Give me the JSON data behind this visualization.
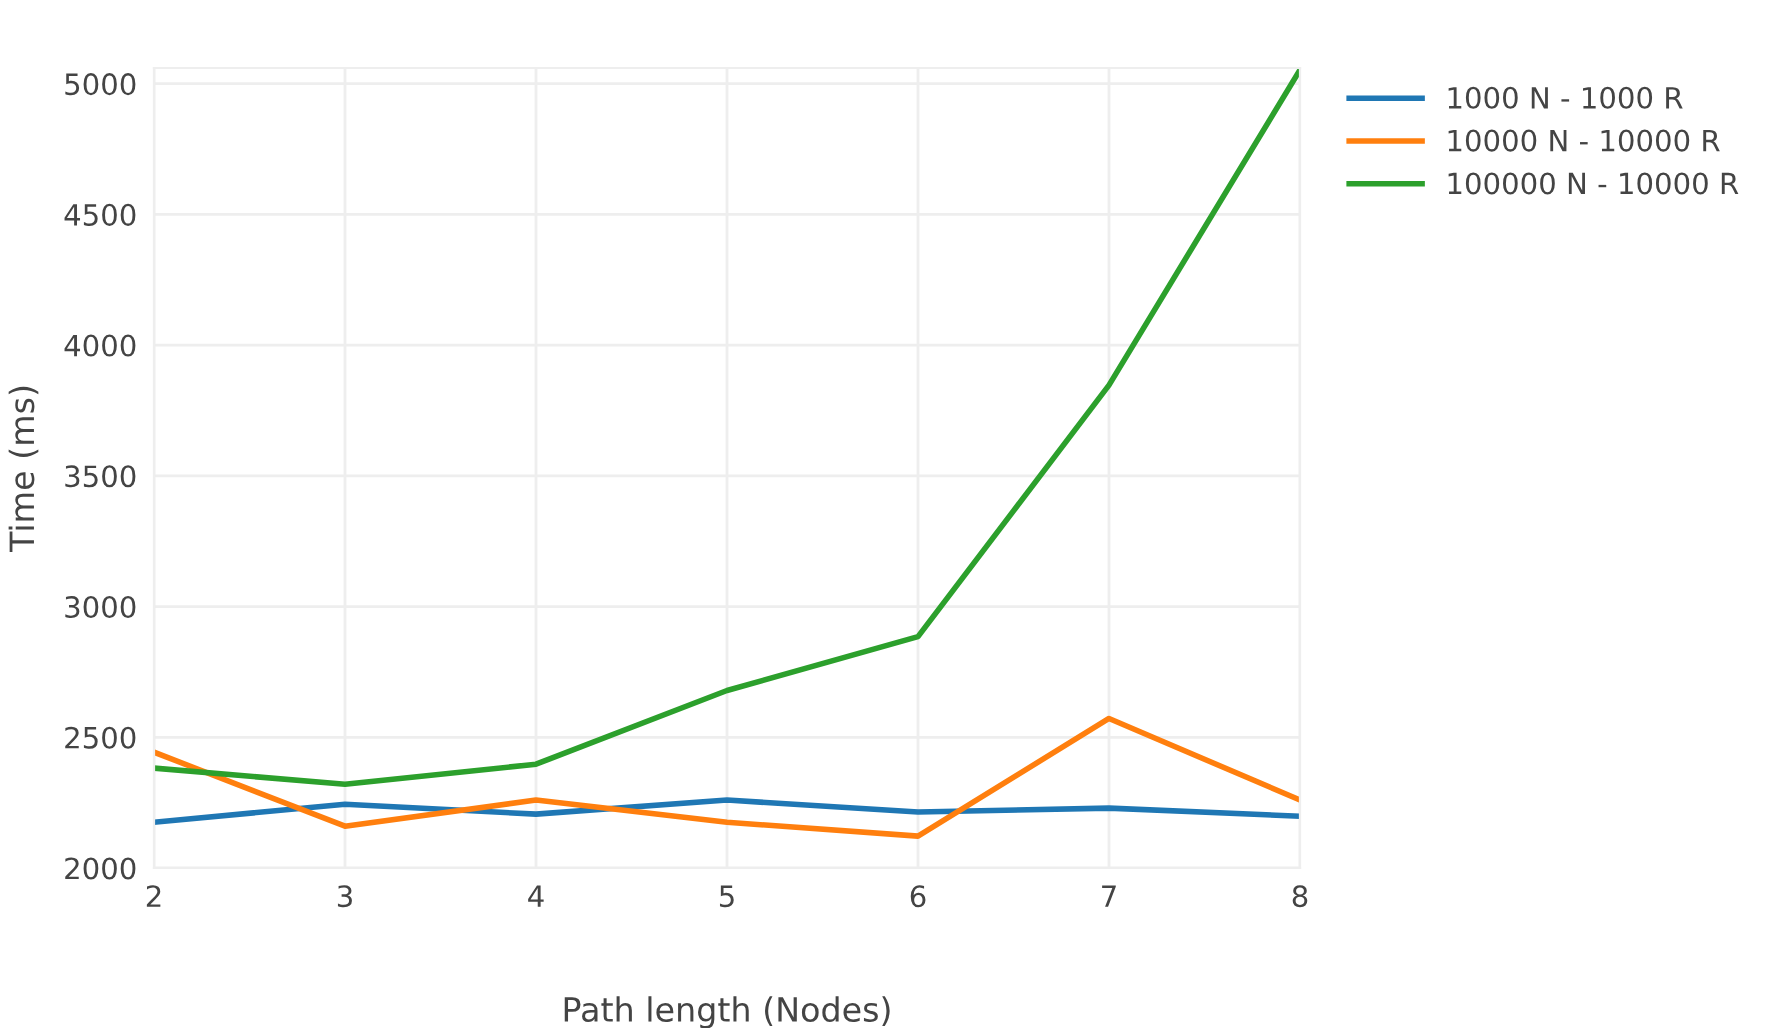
{
  "chart_data": {
    "type": "line",
    "xlabel": "Path length (Nodes)",
    "ylabel": "Time (ms)",
    "x": [
      2,
      3,
      4,
      5,
      6,
      7,
      8
    ],
    "series": [
      {
        "name": "1000 N - 1000 R",
        "color": "#1f77b4",
        "values": [
          2175,
          2244,
          2206,
          2260,
          2214,
          2229,
          2198
        ]
      },
      {
        "name": "10000 N - 10000 R",
        "color": "#ff7f0e",
        "values": [
          2443,
          2160,
          2260,
          2175,
          2122,
          2572,
          2260
        ]
      },
      {
        "name": "100000 N - 10000 R",
        "color": "#2ca02c",
        "values": [
          2382,
          2320,
          2397,
          2679,
          2885,
          3847,
          5053
        ]
      }
    ],
    "xlim": [
      2,
      8
    ],
    "xticks": [
      2,
      3,
      4,
      5,
      6,
      7,
      8
    ],
    "ylim": [
      2000,
      5060
    ],
    "yticks": [
      2000,
      2500,
      3000,
      3500,
      4000,
      4500,
      5000
    ],
    "grid": true,
    "legend": "top right",
    "marker": "none",
    "line_style": "solid"
  }
}
